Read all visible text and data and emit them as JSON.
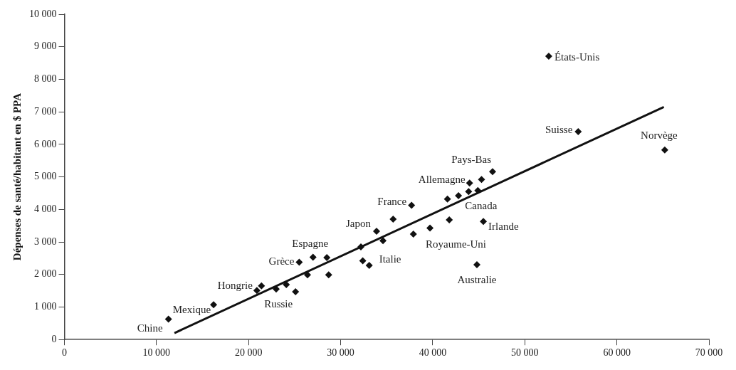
{
  "chart_data": {
    "type": "scatter",
    "ylabel": "Dépenses de santé/habitant en $ PPA",
    "xlim": [
      0,
      70000
    ],
    "ylim": [
      0,
      10000
    ],
    "xticks": [
      {
        "value": 0,
        "label": "0"
      },
      {
        "value": 10000,
        "label": "10 000"
      },
      {
        "value": 20000,
        "label": "20 000"
      },
      {
        "value": 30000,
        "label": "30 000"
      },
      {
        "value": 40000,
        "label": "40 000"
      },
      {
        "value": 50000,
        "label": "50 000"
      },
      {
        "value": 60000,
        "label": "60 000"
      },
      {
        "value": 70000,
        "label": "70 000"
      }
    ],
    "yticks": [
      {
        "value": 0,
        "label": "0"
      },
      {
        "value": 1000,
        "label": "1 000"
      },
      {
        "value": 2000,
        "label": "2 000"
      },
      {
        "value": 3000,
        "label": "3 000"
      },
      {
        "value": 4000,
        "label": "4 000"
      },
      {
        "value": 5000,
        "label": "5 000"
      },
      {
        "value": 6000,
        "label": "6 000"
      },
      {
        "value": 7000,
        "label": "7 000"
      },
      {
        "value": 8000,
        "label": "8 000"
      },
      {
        "value": 9000,
        "label": "9 000"
      },
      {
        "value": 10000,
        "label": "10 000"
      }
    ],
    "grid": false,
    "legend": false,
    "marker": "diamond",
    "series": [
      {
        "type": "scatter",
        "color": "#111111",
        "x": [
          11300,
          16200,
          20900,
          21400,
          23000,
          24100,
          25100,
          25500,
          26400,
          27000,
          28500,
          28700,
          32200,
          32400,
          33100,
          33900,
          34600,
          35700,
          37700,
          37900,
          39700,
          41600,
          41800,
          42800,
          44000,
          43900,
          44900,
          45300,
          46500,
          45500,
          44800,
          52600,
          55800,
          65200
        ],
        "values": [
          630,
          1070,
          1510,
          1650,
          1550,
          1690,
          1470,
          2380,
          1990,
          2530,
          2520,
          1990,
          2850,
          2420,
          2280,
          3330,
          3040,
          3700,
          4130,
          3240,
          3430,
          4320,
          3680,
          4420,
          4810,
          4550,
          4580,
          4920,
          5160,
          3630,
          2300,
          8710,
          6390,
          5830
        ]
      },
      {
        "type": "line",
        "color": "#111111",
        "marker": "none",
        "x": [
          11950,
          65100
        ],
        "values": [
          200,
          7150
        ]
      }
    ],
    "annotations": [
      {
        "text": "Chine",
        "x": 11300,
        "y": 630
      },
      {
        "text": "Mexique",
        "x": 16200,
        "y": 1070
      },
      {
        "text": "Hongrie",
        "x": 20900,
        "y": 1510
      },
      {
        "text": "Russie",
        "x": 25100,
        "y": 1470
      },
      {
        "text": "Grèce",
        "x": 25500,
        "y": 2380
      },
      {
        "text": "Espagne",
        "x": 27000,
        "y": 2530
      },
      {
        "text": "Japon",
        "x": 33900,
        "y": 3330
      },
      {
        "text": "Italie",
        "x": 33100,
        "y": 2280
      },
      {
        "text": "France",
        "x": 37700,
        "y": 4130
      },
      {
        "text": "Royaume-Uni",
        "x": 39700,
        "y": 3430
      },
      {
        "text": "Canada",
        "x": 44900,
        "y": 4580
      },
      {
        "text": "Allemagne",
        "x": 44000,
        "y": 4810
      },
      {
        "text": "Pays-Bas",
        "x": 46500,
        "y": 5160
      },
      {
        "text": "Irlande",
        "x": 45500,
        "y": 3630
      },
      {
        "text": "Australie",
        "x": 44800,
        "y": 2300
      },
      {
        "text": "États-Unis",
        "x": 52600,
        "y": 8710
      },
      {
        "text": "Suisse",
        "x": 55800,
        "y": 6390
      },
      {
        "text": "Norvège",
        "x": 65200,
        "y": 5830
      }
    ]
  }
}
